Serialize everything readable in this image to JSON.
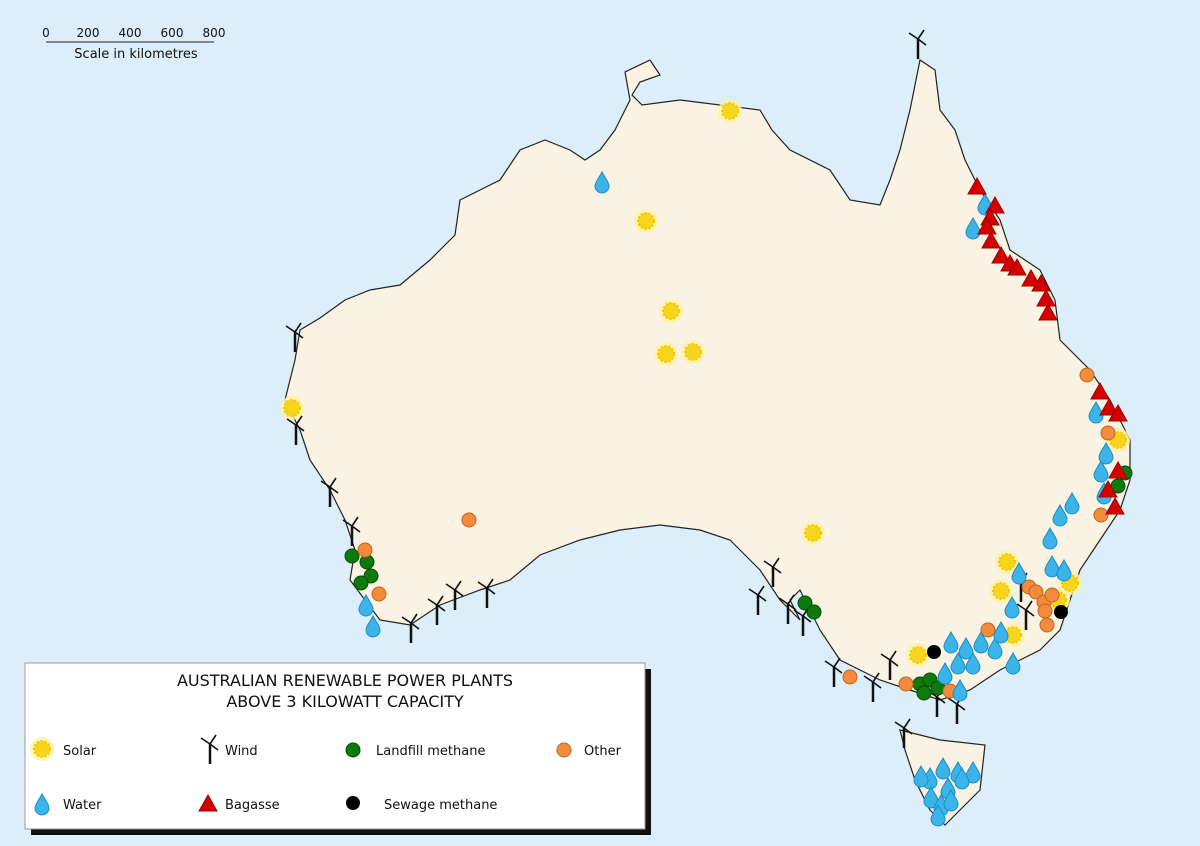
{
  "scale": {
    "ticks": [
      "0",
      "200",
      "400",
      "600",
      "800"
    ],
    "caption": "Scale in kilometres"
  },
  "legend": {
    "title": [
      "AUSTRALIAN RENEWABLE POWER PLANTS",
      "ABOVE 3 KILOWATT CAPACITY"
    ],
    "items": [
      "Solar",
      "Wind",
      "Landfill methane",
      "Other",
      "Water",
      "Bagasse",
      "Sewage methane"
    ]
  }
}
